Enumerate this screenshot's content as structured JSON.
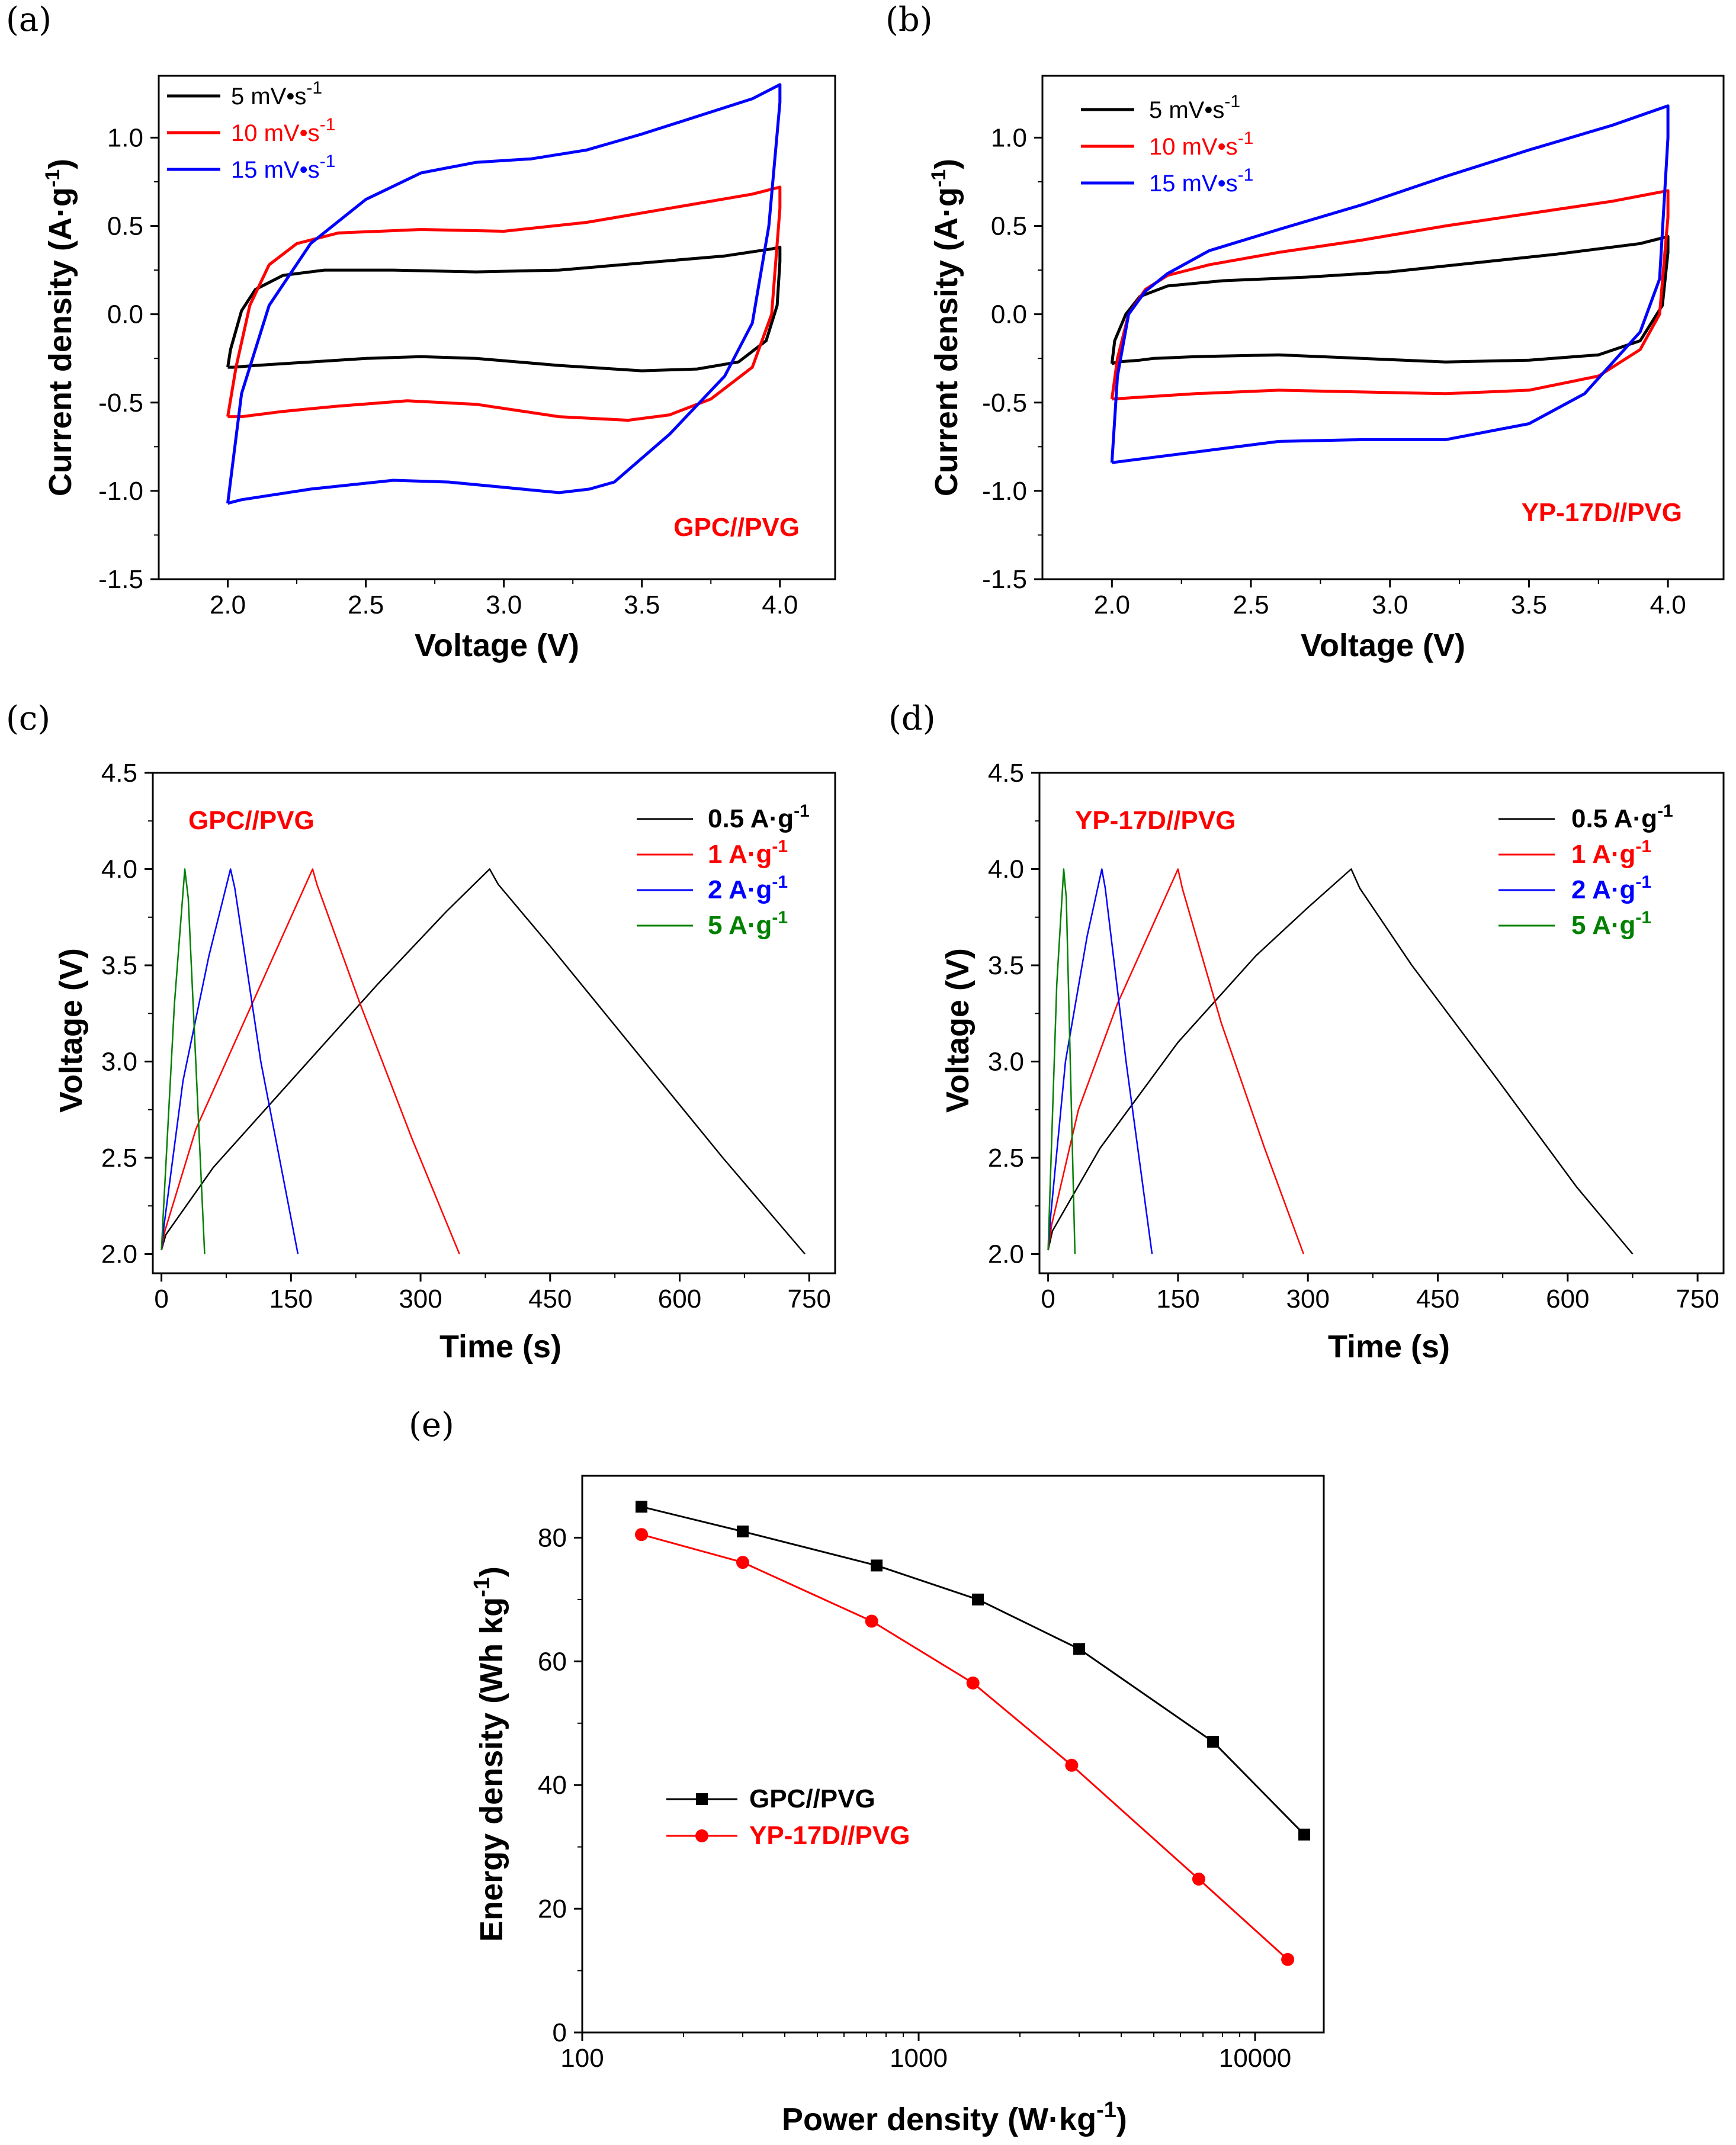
{
  "chart_data": [
    {
      "panel": "(a)",
      "type": "line",
      "title": "",
      "xlabel": "Voltage (V)",
      "ylabel": "Current density (A·g⁻¹)",
      "xlim": [
        1.75,
        4.2
      ],
      "ylim": [
        -1.5,
        1.35
      ],
      "xticks": [
        2.0,
        2.5,
        3.0,
        3.5,
        4.0
      ],
      "xtick_labels": [
        "2.0",
        "2.5",
        "3.0",
        "3.5",
        "4.0"
      ],
      "yticks": [
        -1.5,
        -1.0,
        -0.5,
        0.0,
        0.5,
        1.0
      ],
      "ytick_labels": [
        "-1.5",
        "-1.0",
        "-0.5",
        "0.0",
        "0.5",
        "1.0"
      ],
      "annotation": "GPC//PVG",
      "legend": [
        {
          "label": "5 mV•s",
          "sup": "-1",
          "color": "#000000"
        },
        {
          "label": "10 mV•s",
          "sup": "-1",
          "color": "#ff0000"
        },
        {
          "label": "15 mV•s",
          "sup": "-1",
          "color": "#0000ff"
        }
      ],
      "series": [
        {
          "name": "5 mV•s-1",
          "color": "#000000",
          "x": [
            2.0,
            2.01,
            2.05,
            2.1,
            2.2,
            2.35,
            2.6,
            2.9,
            3.2,
            3.5,
            3.8,
            3.97,
            4.0,
            4.0,
            3.99,
            3.95,
            3.85,
            3.7,
            3.5,
            3.2,
            2.9,
            2.7,
            2.5,
            2.3,
            2.1,
            2.02,
            2.0
          ],
          "y": [
            -0.3,
            -0.2,
            0.02,
            0.14,
            0.22,
            0.25,
            0.25,
            0.24,
            0.25,
            0.29,
            0.33,
            0.37,
            0.38,
            0.3,
            0.05,
            -0.15,
            -0.27,
            -0.31,
            -0.32,
            -0.29,
            -0.25,
            -0.24,
            -0.25,
            -0.27,
            -0.29,
            -0.3,
            -0.3
          ]
        },
        {
          "name": "10 mV•s-1",
          "color": "#ff0000",
          "x": [
            2.0,
            2.03,
            2.08,
            2.15,
            2.25,
            2.4,
            2.7,
            3.0,
            3.3,
            3.6,
            3.9,
            4.0,
            4.0,
            3.97,
            3.9,
            3.75,
            3.6,
            3.45,
            3.2,
            2.9,
            2.65,
            2.4,
            2.2,
            2.05,
            2.0
          ],
          "y": [
            -0.58,
            -0.3,
            0.05,
            0.28,
            0.4,
            0.46,
            0.48,
            0.47,
            0.52,
            0.6,
            0.68,
            0.72,
            0.6,
            0.0,
            -0.3,
            -0.48,
            -0.57,
            -0.6,
            -0.58,
            -0.51,
            -0.49,
            -0.52,
            -0.55,
            -0.58,
            -0.58
          ]
        },
        {
          "name": "15 mV•s-1",
          "color": "#0000ff",
          "x": [
            2.0,
            2.05,
            2.15,
            2.3,
            2.5,
            2.7,
            2.9,
            3.1,
            3.3,
            3.5,
            3.7,
            3.9,
            4.0,
            4.0,
            3.96,
            3.9,
            3.8,
            3.6,
            3.4,
            3.31,
            3.2,
            3.0,
            2.8,
            2.6,
            2.3,
            2.05,
            2.0
          ],
          "y": [
            -1.07,
            -0.45,
            0.05,
            0.4,
            0.65,
            0.8,
            0.86,
            0.88,
            0.93,
            1.02,
            1.12,
            1.22,
            1.3,
            1.2,
            0.5,
            -0.05,
            -0.35,
            -0.68,
            -0.95,
            -0.99,
            -1.01,
            -0.98,
            -0.95,
            -0.94,
            -0.99,
            -1.05,
            -1.07
          ]
        }
      ]
    },
    {
      "panel": "(b)",
      "type": "line",
      "title": "",
      "xlabel": "Voltage (V)",
      "ylabel": "Current density (A·g⁻¹)",
      "xlim": [
        1.75,
        4.2
      ],
      "ylim": [
        -1.5,
        1.35
      ],
      "xticks": [
        2.0,
        2.5,
        3.0,
        3.5,
        4.0
      ],
      "xtick_labels": [
        "2.0",
        "2.5",
        "3.0",
        "3.5",
        "4.0"
      ],
      "yticks": [
        -1.5,
        -1.0,
        -0.5,
        0.0,
        0.5,
        1.0
      ],
      "ytick_labels": [
        "-1.5",
        "-1.0",
        "-0.5",
        "0.0",
        "0.5",
        "1.0"
      ],
      "annotation": "YP-17D//PVG",
      "legend": [
        {
          "label": "5 mV•s",
          "sup": "-1",
          "color": "#000000"
        },
        {
          "label": "10 mV•s",
          "sup": "-1",
          "color": "#ff0000"
        },
        {
          "label": "15 mV•s",
          "sup": "-1",
          "color": "#0000ff"
        }
      ],
      "series": [
        {
          "name": "5 mV•s-1",
          "color": "#000000",
          "x": [
            2.0,
            2.01,
            2.05,
            2.1,
            2.2,
            2.4,
            2.7,
            3.0,
            3.3,
            3.6,
            3.9,
            4.0,
            4.0,
            3.98,
            3.9,
            3.75,
            3.5,
            3.2,
            2.9,
            2.6,
            2.3,
            2.15,
            2.1,
            2.02,
            2.0
          ],
          "y": [
            -0.28,
            -0.15,
            0.0,
            0.1,
            0.16,
            0.19,
            0.21,
            0.24,
            0.29,
            0.34,
            0.4,
            0.44,
            0.35,
            0.05,
            -0.15,
            -0.23,
            -0.26,
            -0.27,
            -0.25,
            -0.23,
            -0.24,
            -0.25,
            -0.26,
            -0.27,
            -0.28
          ]
        },
        {
          "name": "10 mV•s-1",
          "color": "#ff0000",
          "x": [
            2.0,
            2.02,
            2.06,
            2.12,
            2.2,
            2.35,
            2.6,
            2.9,
            3.2,
            3.5,
            3.8,
            4.0,
            4.0,
            3.97,
            3.9,
            3.75,
            3.5,
            3.2,
            2.9,
            2.6,
            2.3,
            2.1,
            2.0
          ],
          "y": [
            -0.48,
            -0.25,
            0.0,
            0.14,
            0.22,
            0.28,
            0.35,
            0.42,
            0.5,
            0.57,
            0.64,
            0.7,
            0.55,
            0.0,
            -0.2,
            -0.35,
            -0.43,
            -0.45,
            -0.44,
            -0.43,
            -0.45,
            -0.47,
            -0.48
          ]
        },
        {
          "name": "15 mV•s-1",
          "color": "#0000ff",
          "x": [
            2.0,
            2.02,
            2.06,
            2.12,
            2.2,
            2.35,
            2.6,
            2.9,
            3.2,
            3.5,
            3.8,
            4.0,
            4.0,
            3.97,
            3.9,
            3.7,
            3.5,
            3.2,
            2.9,
            2.6,
            2.3,
            2.1,
            2.0
          ],
          "y": [
            -0.84,
            -0.35,
            0.0,
            0.13,
            0.23,
            0.36,
            0.48,
            0.62,
            0.78,
            0.93,
            1.07,
            1.18,
            1.0,
            0.2,
            -0.1,
            -0.45,
            -0.62,
            -0.71,
            -0.71,
            -0.72,
            -0.78,
            -0.82,
            -0.84
          ]
        }
      ]
    },
    {
      "panel": "(c)",
      "type": "line",
      "title": "",
      "xlabel": "Time (s)",
      "ylabel": "Voltage (V)",
      "xlim": [
        -10,
        780
      ],
      "ylim": [
        1.9,
        4.5
      ],
      "xticks": [
        0,
        150,
        300,
        450,
        600,
        750
      ],
      "xtick_labels": [
        "0",
        "150",
        "300",
        "450",
        "600",
        "750"
      ],
      "yticks": [
        2.0,
        2.5,
        3.0,
        3.5,
        4.0,
        4.5
      ],
      "ytick_labels": [
        "2.0",
        "2.5",
        "3.0",
        "3.5",
        "4.0",
        "4.5"
      ],
      "annotation": "GPC//PVG",
      "legend": [
        {
          "label": "0.5 A·g",
          "sup": "-1",
          "color": "#000000"
        },
        {
          "label": "1 A·g",
          "sup": "-1",
          "color": "#ff0000"
        },
        {
          "label": "2 A·g",
          "sup": "-1",
          "color": "#0000ff"
        },
        {
          "label": "5 A·g",
          "sup": "-1",
          "color": "#008000"
        }
      ],
      "series": [
        {
          "name": "0.5 A·g-1",
          "color": "#000000",
          "x": [
            0,
            5,
            60,
            150,
            250,
            330,
            380,
            390,
            450,
            550,
            650,
            745
          ],
          "y": [
            2.02,
            2.1,
            2.45,
            2.9,
            3.4,
            3.78,
            4.0,
            3.92,
            3.6,
            3.05,
            2.5,
            2.0
          ]
        },
        {
          "name": "1 A·g-1",
          "color": "#ff0000",
          "x": [
            0,
            4,
            40,
            90,
            140,
            175,
            180,
            230,
            290,
            345
          ],
          "y": [
            2.02,
            2.12,
            2.65,
            3.15,
            3.65,
            4.0,
            3.92,
            3.3,
            2.6,
            2.0
          ]
        },
        {
          "name": "2 A·g-1",
          "color": "#0000ff",
          "x": [
            0,
            3,
            25,
            55,
            80,
            85,
            115,
            158
          ],
          "y": [
            2.02,
            2.15,
            2.9,
            3.55,
            4.0,
            3.9,
            3.0,
            2.0
          ]
        },
        {
          "name": "5 A·g-1",
          "color": "#008000",
          "x": [
            0,
            2,
            15,
            27,
            31,
            50
          ],
          "y": [
            2.02,
            2.2,
            3.3,
            4.0,
            3.85,
            2.0
          ]
        }
      ]
    },
    {
      "panel": "(d)",
      "type": "line",
      "title": "",
      "xlabel": "Time (s)",
      "ylabel": "Voltage (V)",
      "xlim": [
        -10,
        780
      ],
      "ylim": [
        1.9,
        4.5
      ],
      "xticks": [
        0,
        150,
        300,
        450,
        600,
        750
      ],
      "xtick_labels": [
        "0",
        "150",
        "300",
        "450",
        "600",
        "750"
      ],
      "yticks": [
        2.0,
        2.5,
        3.0,
        3.5,
        4.0,
        4.5
      ],
      "ytick_labels": [
        "2.0",
        "2.5",
        "3.0",
        "3.5",
        "4.0",
        "4.5"
      ],
      "annotation": "YP-17D//PVG",
      "legend": [
        {
          "label": "0.5 A·g",
          "sup": "-1",
          "color": "#000000"
        },
        {
          "label": "1 A·g",
          "sup": "-1",
          "color": "#ff0000"
        },
        {
          "label": "2 A·g",
          "sup": "-1",
          "color": "#0000ff"
        },
        {
          "label": "5 A·g",
          "sup": "-1",
          "color": "#008000"
        }
      ],
      "series": [
        {
          "name": "0.5 A·g-1",
          "color": "#000000",
          "x": [
            0,
            5,
            60,
            150,
            240,
            300,
            350,
            360,
            420,
            520,
            610,
            675
          ],
          "y": [
            2.02,
            2.12,
            2.55,
            3.1,
            3.55,
            3.8,
            4.0,
            3.9,
            3.5,
            2.9,
            2.35,
            2.0
          ]
        },
        {
          "name": "1 A·g-1",
          "color": "#ff0000",
          "x": [
            0,
            4,
            35,
            80,
            125,
            150,
            155,
            200,
            250,
            295
          ],
          "y": [
            2.02,
            2.15,
            2.75,
            3.3,
            3.75,
            4.0,
            3.9,
            3.2,
            2.55,
            2.0
          ]
        },
        {
          "name": "2 A·g-1",
          "color": "#0000ff",
          "x": [
            0,
            3,
            20,
            45,
            62,
            66,
            90,
            120
          ],
          "y": [
            2.02,
            2.2,
            3.0,
            3.65,
            4.0,
            3.9,
            3.0,
            2.0
          ]
        },
        {
          "name": "5 A·g-1",
          "color": "#008000",
          "x": [
            0,
            2,
            10,
            18,
            21,
            31
          ],
          "y": [
            2.02,
            2.3,
            3.4,
            4.0,
            3.85,
            2.0
          ]
        }
      ]
    },
    {
      "panel": "(e)",
      "type": "line",
      "title": "",
      "xlabel": "Power density (W·kg⁻¹)",
      "ylabel": "Energy density (Wh kg⁻¹)",
      "xscale": "log",
      "xlim": [
        100,
        16000
      ],
      "ylim": [
        0,
        90
      ],
      "xticks": [
        100,
        1000,
        10000
      ],
      "xtick_labels": [
        "100",
        "1000",
        "10000"
      ],
      "yticks": [
        0,
        20,
        40,
        60,
        80
      ],
      "ytick_labels": [
        "0",
        "20",
        "40",
        "60",
        "80"
      ],
      "legend": [
        {
          "label": "GPC//PVG",
          "sup": "",
          "color": "#000000",
          "marker": "square"
        },
        {
          "label": "YP-17D//PVG",
          "sup": "",
          "color": "#ff0000",
          "marker": "circle"
        }
      ],
      "series": [
        {
          "name": "GPC//PVG",
          "color": "#000000",
          "marker": "square",
          "x": [
            150,
            300,
            750,
            1500,
            3000,
            7500,
            14000
          ],
          "y": [
            85,
            81,
            75.5,
            70,
            62,
            47,
            32
          ]
        },
        {
          "name": "YP-17D//PVG",
          "color": "#ff0000",
          "marker": "circle",
          "x": [
            150,
            300,
            725,
            1450,
            2850,
            6800,
            12500
          ],
          "y": [
            80.5,
            76,
            66.5,
            56.5,
            43.2,
            24.8,
            11.8
          ]
        }
      ]
    }
  ]
}
